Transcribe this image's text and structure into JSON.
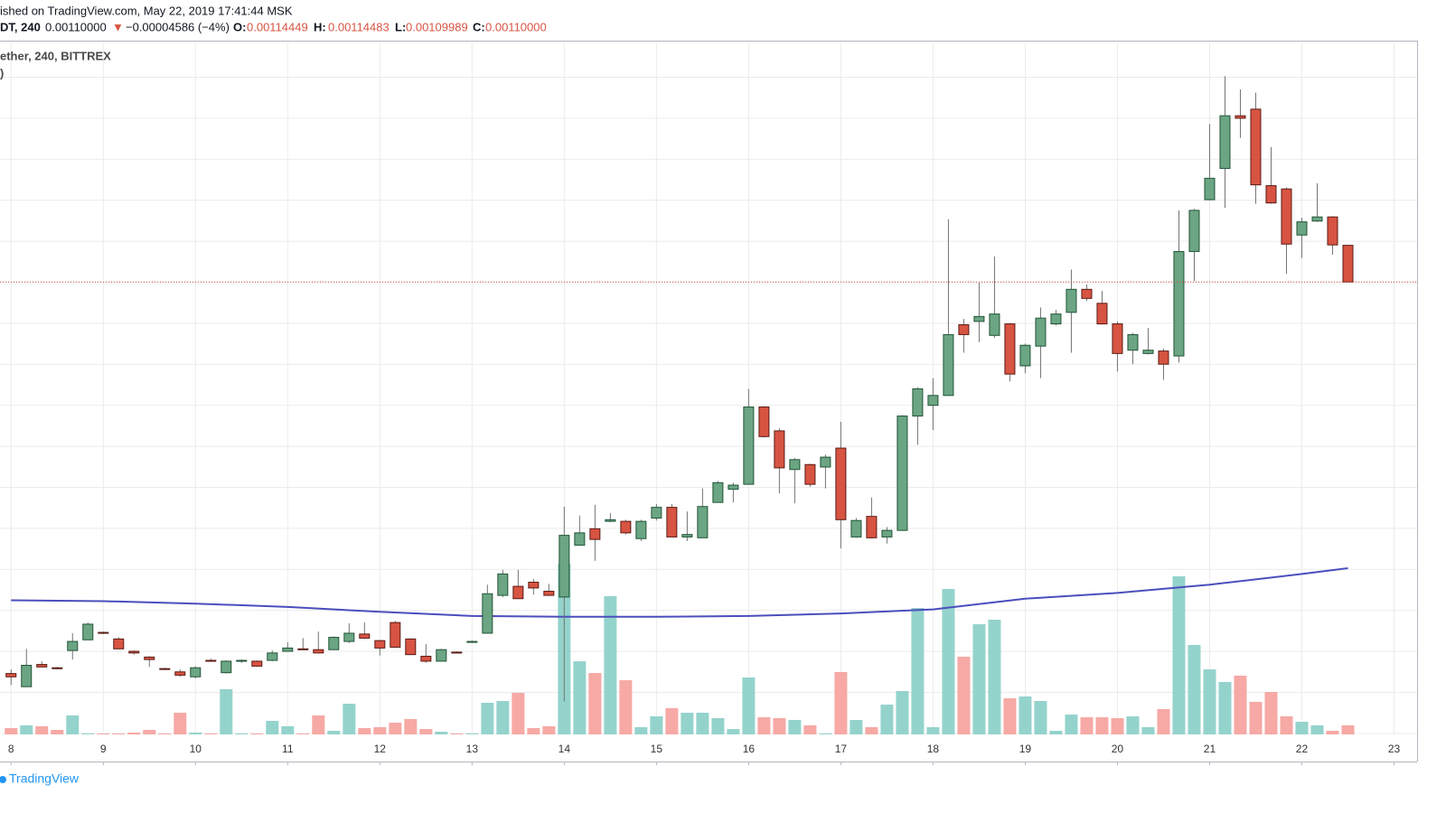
{
  "header": {
    "published": "ished on TradingView.com, May 22, 2019 17:41:44 MSK",
    "symbol": "DT, 240",
    "last": "0.00110000",
    "arrow": "▼",
    "change": "−0.00004586 (−4%)",
    "ohlc": [
      {
        "label": "O:",
        "value": "0.00114449"
      },
      {
        "label": "H:",
        "value": "0.00114483"
      },
      {
        "label": "L:",
        "value": "0.00109989"
      },
      {
        "label": "C:",
        "value": "0.00110000"
      }
    ],
    "study": "ether, 240, BITTREX",
    "study2": ")"
  },
  "footer": {
    "brand": "TradingView"
  },
  "chart_data": {
    "type": "candlestick",
    "x": [
      8,
      8.1667,
      8.3333,
      8.5,
      8.6667,
      8.8333,
      9,
      9.1667,
      9.3333,
      9.5,
      9.6667,
      9.8333,
      10,
      10.1667,
      10.3333,
      10.5,
      10.6667,
      10.8333,
      11,
      11.1667,
      11.3333,
      11.5,
      11.6667,
      11.8333,
      12,
      12.1667,
      12.3333,
      12.5,
      12.6667,
      12.8333,
      13,
      13.1667,
      13.3333,
      13.5,
      13.6667,
      13.8333,
      14,
      14.1667,
      14.3333,
      14.5,
      14.6667,
      14.8333,
      15,
      15.1667,
      15.3333,
      15.5,
      15.6667,
      15.8333,
      16,
      16.1667,
      16.3333,
      16.5,
      16.6667,
      16.8333,
      17,
      17.1667,
      17.3333,
      17.5,
      17.6667,
      17.8333,
      18,
      18.1667,
      18.3333,
      18.5,
      18.6667,
      18.8333,
      19,
      19.1667,
      19.3333,
      19.5,
      19.6667,
      19.8333,
      20,
      20.1667,
      20.3333,
      20.5,
      20.6667,
      20.8333,
      21,
      21.1667,
      21.3333,
      21.5,
      21.6667,
      21.8333,
      22,
      22.1667,
      22.3333,
      22.5
    ],
    "open": [
      0.000624,
      0.000608,
      0.000635,
      0.000631,
      0.000652,
      0.000665,
      0.000674,
      0.000666,
      0.000651,
      0.000644,
      0.00063,
      0.000626,
      0.00062,
      0.00064,
      0.000625,
      0.000639,
      0.000639,
      0.00064,
      0.000651,
      0.000654,
      0.000653,
      0.000653,
      0.000663,
      0.000672,
      0.000664,
      0.000686,
      0.000666,
      0.000645,
      0.000639,
      0.00065,
      0.000662,
      0.000673,
      0.000719,
      0.00073,
      0.000735,
      0.000724,
      0.000717,
      0.00078,
      0.0008,
      0.000809,
      0.000809,
      0.000788,
      0.000813,
      0.000826,
      0.00079,
      0.000789,
      0.000832,
      0.000848,
      0.000854,
      0.000948,
      0.000919,
      0.000872,
      0.000878,
      0.000875,
      0.000898,
      0.00079,
      0.000815,
      0.00079,
      0.000798,
      0.000937,
      0.00095,
      0.000962,
      0.001048,
      0.001052,
      0.001035,
      0.001049,
      0.000998,
      0.001022,
      0.001049,
      0.001063,
      0.001091,
      0.001074,
      0.001049,
      0.001017,
      0.001013,
      0.001016,
      0.00101,
      0.001137,
      0.0012,
      0.001238,
      0.001302,
      0.00131,
      0.001217,
      0.001213,
      0.001157,
      0.001174,
      0.001179,
      0.00114449
    ],
    "high": [
      0.000629,
      0.000654,
      0.000639,
      0.000632,
      0.000673,
      0.000686,
      0.000675,
      0.000668,
      0.000652,
      0.000645,
      0.000631,
      0.000629,
      0.000633,
      0.000642,
      0.00064,
      0.000641,
      0.00064,
      0.000652,
      0.000662,
      0.000667,
      0.000675,
      0.000669,
      0.000685,
      0.000686,
      0.000665,
      0.000688,
      0.000667,
      0.00066,
      0.000654,
      0.000651,
      0.000664,
      0.000732,
      0.00075,
      0.00075,
      0.000739,
      0.000733,
      0.000827,
      0.000816,
      0.000829,
      0.000819,
      0.000811,
      0.000811,
      0.00083,
      0.00083,
      0.000821,
      0.000849,
      0.000858,
      0.000856,
      0.00097,
      0.000949,
      0.000922,
      0.000886,
      0.000879,
      0.00089,
      0.00093,
      0.000813,
      0.000838,
      0.000802,
      0.000938,
      0.000972,
      0.000983,
      0.001176,
      0.001055,
      0.001099,
      0.001131,
      0.00105,
      0.001025,
      0.001069,
      0.001066,
      0.001115,
      0.001097,
      0.001089,
      0.001052,
      0.001038,
      0.001044,
      0.001019,
      0.001187,
      0.001189,
      0.001292,
      0.00135,
      0.001334,
      0.00133,
      0.001264,
      0.001215,
      0.001178,
      0.00122,
      0.00118,
      0.00114483
    ],
    "low": [
      0.00061,
      0.000608,
      0.000632,
      0.000629,
      0.000641,
      0.000665,
      0.000672,
      0.000654,
      0.000647,
      0.000632,
      0.000629,
      0.00062,
      0.000618,
      0.000639,
      0.000624,
      0.000637,
      0.000632,
      0.000639,
      0.000651,
      0.000653,
      0.000649,
      0.000653,
      0.000661,
      0.000666,
      0.000646,
      0.000656,
      0.000647,
      0.000637,
      0.000639,
      0.000649,
      0.000662,
      0.000673,
      0.000717,
      0.000715,
      0.00072,
      0.000719,
      0.00059,
      0.00078,
      0.000761,
      0.000808,
      0.000793,
      0.000785,
      0.00081,
      0.00079,
      0.000785,
      0.000789,
      0.000832,
      0.000832,
      0.000854,
      0.000911,
      0.000843,
      0.000831,
      0.000851,
      0.000849,
      0.000776,
      0.000789,
      0.000788,
      0.000782,
      0.000798,
      0.000902,
      0.00092,
      0.000962,
      0.001014,
      0.001027,
      0.001032,
      0.000979,
      0.000989,
      0.000983,
      0.001047,
      0.001014,
      0.001077,
      0.001048,
      0.000991,
      0.001,
      0.001012,
      0.000981,
      0.001002,
      0.001101,
      0.001199,
      0.00119,
      0.001275,
      0.001195,
      0.001195,
      0.00111,
      0.001129,
      0.001173,
      0.001133,
      0.00109989
    ],
    "close": [
      0.00062,
      0.000634,
      0.000632,
      0.00063,
      0.000663,
      0.000684,
      0.000673,
      0.000654,
      0.000649,
      0.000641,
      0.000629,
      0.000622,
      0.000631,
      0.000639,
      0.000639,
      0.00064,
      0.000633,
      0.000649,
      0.000655,
      0.000653,
      0.000649,
      0.000668,
      0.000673,
      0.000667,
      0.000655,
      0.000656,
      0.000647,
      0.000639,
      0.000653,
      0.000649,
      0.000663,
      0.000721,
      0.000745,
      0.000715,
      0.000728,
      0.000719,
      0.000792,
      0.000795,
      0.000787,
      0.000811,
      0.000795,
      0.000809,
      0.000826,
      0.00079,
      0.000793,
      0.000827,
      0.000856,
      0.000853,
      0.000948,
      0.000912,
      0.000874,
      0.000884,
      0.000854,
      0.000887,
      0.000811,
      0.00081,
      0.000789,
      0.000798,
      0.000937,
      0.00097,
      0.000962,
      0.001036,
      0.001036,
      0.001058,
      0.001061,
      0.000988,
      0.001023,
      0.001056,
      0.001061,
      0.001091,
      0.00108,
      0.001049,
      0.001013,
      0.001036,
      0.001017,
      0.001,
      0.001137,
      0.001187,
      0.001226,
      0.001302,
      0.001299,
      0.001218,
      0.001196,
      0.001146,
      0.001173,
      0.001179,
      0.001145,
      0.0011
    ],
    "volume": [
      7,
      10,
      9,
      5,
      21,
      1,
      1,
      1,
      2,
      5,
      1,
      24,
      2,
      1,
      50,
      1,
      1,
      15,
      9,
      1,
      21,
      4,
      34,
      7,
      8,
      13,
      17,
      6,
      3,
      1,
      1,
      35,
      37,
      46,
      7,
      9,
      189,
      81,
      68,
      153,
      60,
      8,
      20,
      29,
      24,
      24,
      18,
      6,
      63,
      19,
      18,
      16,
      10,
      1,
      69,
      16,
      8,
      33,
      48,
      140,
      8,
      161,
      86,
      122,
      127,
      40,
      42,
      37,
      4,
      22,
      19,
      19,
      18,
      20,
      8,
      28,
      175,
      99,
      72,
      58,
      65,
      36,
      47,
      20,
      14,
      10,
      4,
      10
    ],
    "ma": {
      "color": "#4b4ebd",
      "x": [
        8,
        9,
        10,
        11,
        12,
        13,
        14,
        15,
        16,
        17,
        18,
        19,
        20,
        21,
        22,
        22.5
      ],
      "values": [
        0.000713,
        0.000712,
        0.000709,
        0.000705,
        0.000699,
        0.000694,
        0.000693,
        0.000693,
        0.000694,
        0.000697,
        0.000702,
        0.000715,
        0.000722,
        0.000732,
        0.000745,
        0.000752
      ]
    },
    "up_color": "#6ba583",
    "down_color": "#d75442",
    "volume_up_color": "#94d3cc",
    "volume_down_color": "#f6a9a5",
    "price_line_color": "#e0453d",
    "xlim": [
      7.88,
      23.25
    ],
    "xticks": [
      8,
      9,
      10,
      11,
      12,
      13,
      14,
      15,
      16,
      17,
      18,
      19,
      20,
      21,
      22,
      23
    ],
    "ylim": [
      0.00055,
      0.00139
    ],
    "volume_lim": [
      0,
      200
    ],
    "grid": true
  }
}
